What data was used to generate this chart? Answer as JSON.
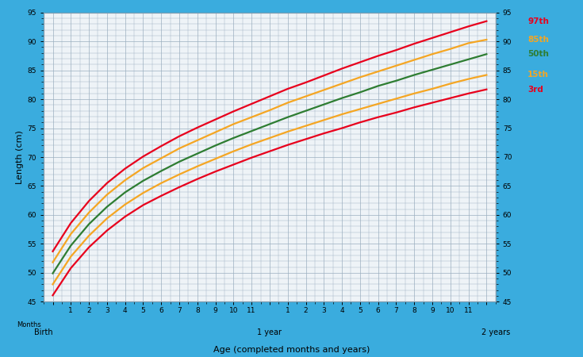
{
  "title": "",
  "xlabel": "Age (completed months and years)",
  "ylabel": "Length (cm)",
  "background_color": "#3aacde",
  "plot_bg_color": "#eef3f7",
  "ylim": [
    45,
    95
  ],
  "yticks": [
    45,
    50,
    55,
    60,
    65,
    70,
    75,
    80,
    85,
    90,
    95
  ],
  "p97": [
    53.7,
    58.6,
    62.4,
    65.5,
    68.0,
    70.1,
    71.9,
    73.6,
    75.1,
    76.5,
    77.9,
    79.2,
    80.5,
    81.8,
    82.9,
    84.1,
    85.3,
    86.4,
    87.5,
    88.5,
    89.6,
    90.6,
    91.6,
    92.6,
    93.5
  ],
  "p85": [
    51.8,
    56.7,
    60.4,
    63.5,
    66.0,
    68.1,
    69.8,
    71.5,
    72.9,
    74.3,
    75.7,
    76.9,
    78.1,
    79.4,
    80.5,
    81.6,
    82.7,
    83.8,
    84.8,
    85.8,
    86.8,
    87.8,
    88.7,
    89.7,
    90.3
  ],
  "p50": [
    49.9,
    54.7,
    58.4,
    61.4,
    63.9,
    65.9,
    67.6,
    69.2,
    70.6,
    72.0,
    73.3,
    74.5,
    75.7,
    76.9,
    78.0,
    79.1,
    80.2,
    81.2,
    82.3,
    83.2,
    84.2,
    85.1,
    86.0,
    86.9,
    87.8
  ],
  "p15": [
    48.0,
    52.8,
    56.4,
    59.4,
    61.8,
    63.8,
    65.5,
    67.0,
    68.4,
    69.7,
    71.0,
    72.2,
    73.3,
    74.4,
    75.4,
    76.4,
    77.4,
    78.3,
    79.2,
    80.1,
    81.0,
    81.8,
    82.7,
    83.5,
    84.2
  ],
  "p3": [
    46.1,
    50.8,
    54.4,
    57.3,
    59.7,
    61.7,
    63.3,
    64.8,
    66.2,
    67.5,
    68.7,
    69.9,
    71.0,
    72.1,
    73.1,
    74.1,
    75.0,
    76.0,
    76.9,
    77.7,
    78.6,
    79.4,
    80.2,
    81.0,
    81.7
  ],
  "curve_colors": [
    "#e8001c",
    "#f5a623",
    "#2e7d32",
    "#f5a623",
    "#e8001c"
  ],
  "curve_labels": [
    "97th",
    "85th",
    "50th",
    "15th",
    "3rd"
  ],
  "label_colors": [
    "#e8001c",
    "#f5a623",
    "#2e7d32",
    "#f5a623",
    "#e8001c"
  ],
  "lw": 1.6
}
